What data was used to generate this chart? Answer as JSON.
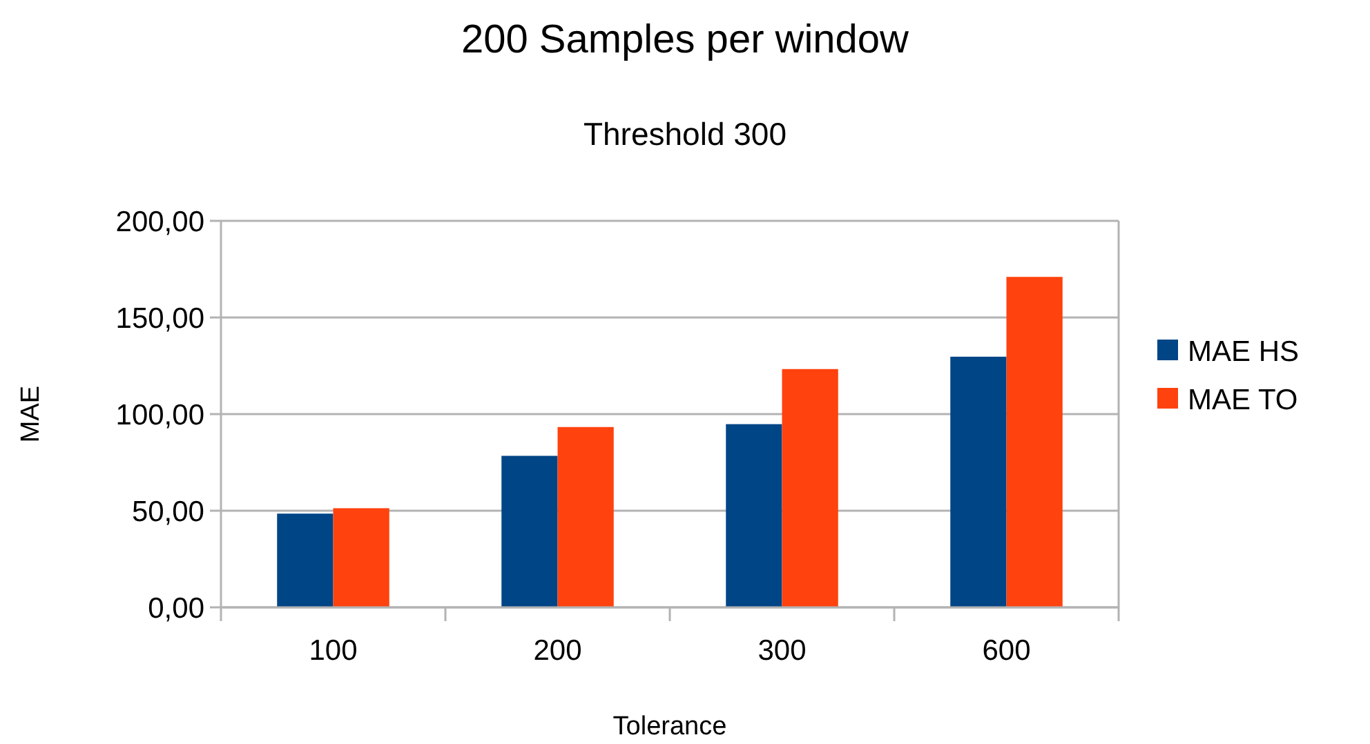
{
  "chart_data": {
    "type": "bar",
    "title": "200 Samples per window",
    "subtitle": "Threshold 300",
    "xlabel": "Tolerance",
    "ylabel": "MAE",
    "categories": [
      "100",
      "200",
      "300",
      "600"
    ],
    "series": [
      {
        "name": "MAE HS",
        "color": "#004586",
        "values": [
          48.5,
          78.4,
          94.8,
          129.7
        ]
      },
      {
        "name": "MAE TO",
        "color": "#ff420e",
        "values": [
          51.3,
          93.3,
          123.3,
          171.0
        ]
      }
    ],
    "ylim": [
      0,
      200
    ],
    "yticks": [
      {
        "value": 0,
        "label": "0,00"
      },
      {
        "value": 50,
        "label": "50,00"
      },
      {
        "value": 100,
        "label": "100,00"
      },
      {
        "value": 150,
        "label": "150,00"
      },
      {
        "value": 200,
        "label": "200,00"
      }
    ],
    "grid": "y",
    "legend": "right"
  }
}
